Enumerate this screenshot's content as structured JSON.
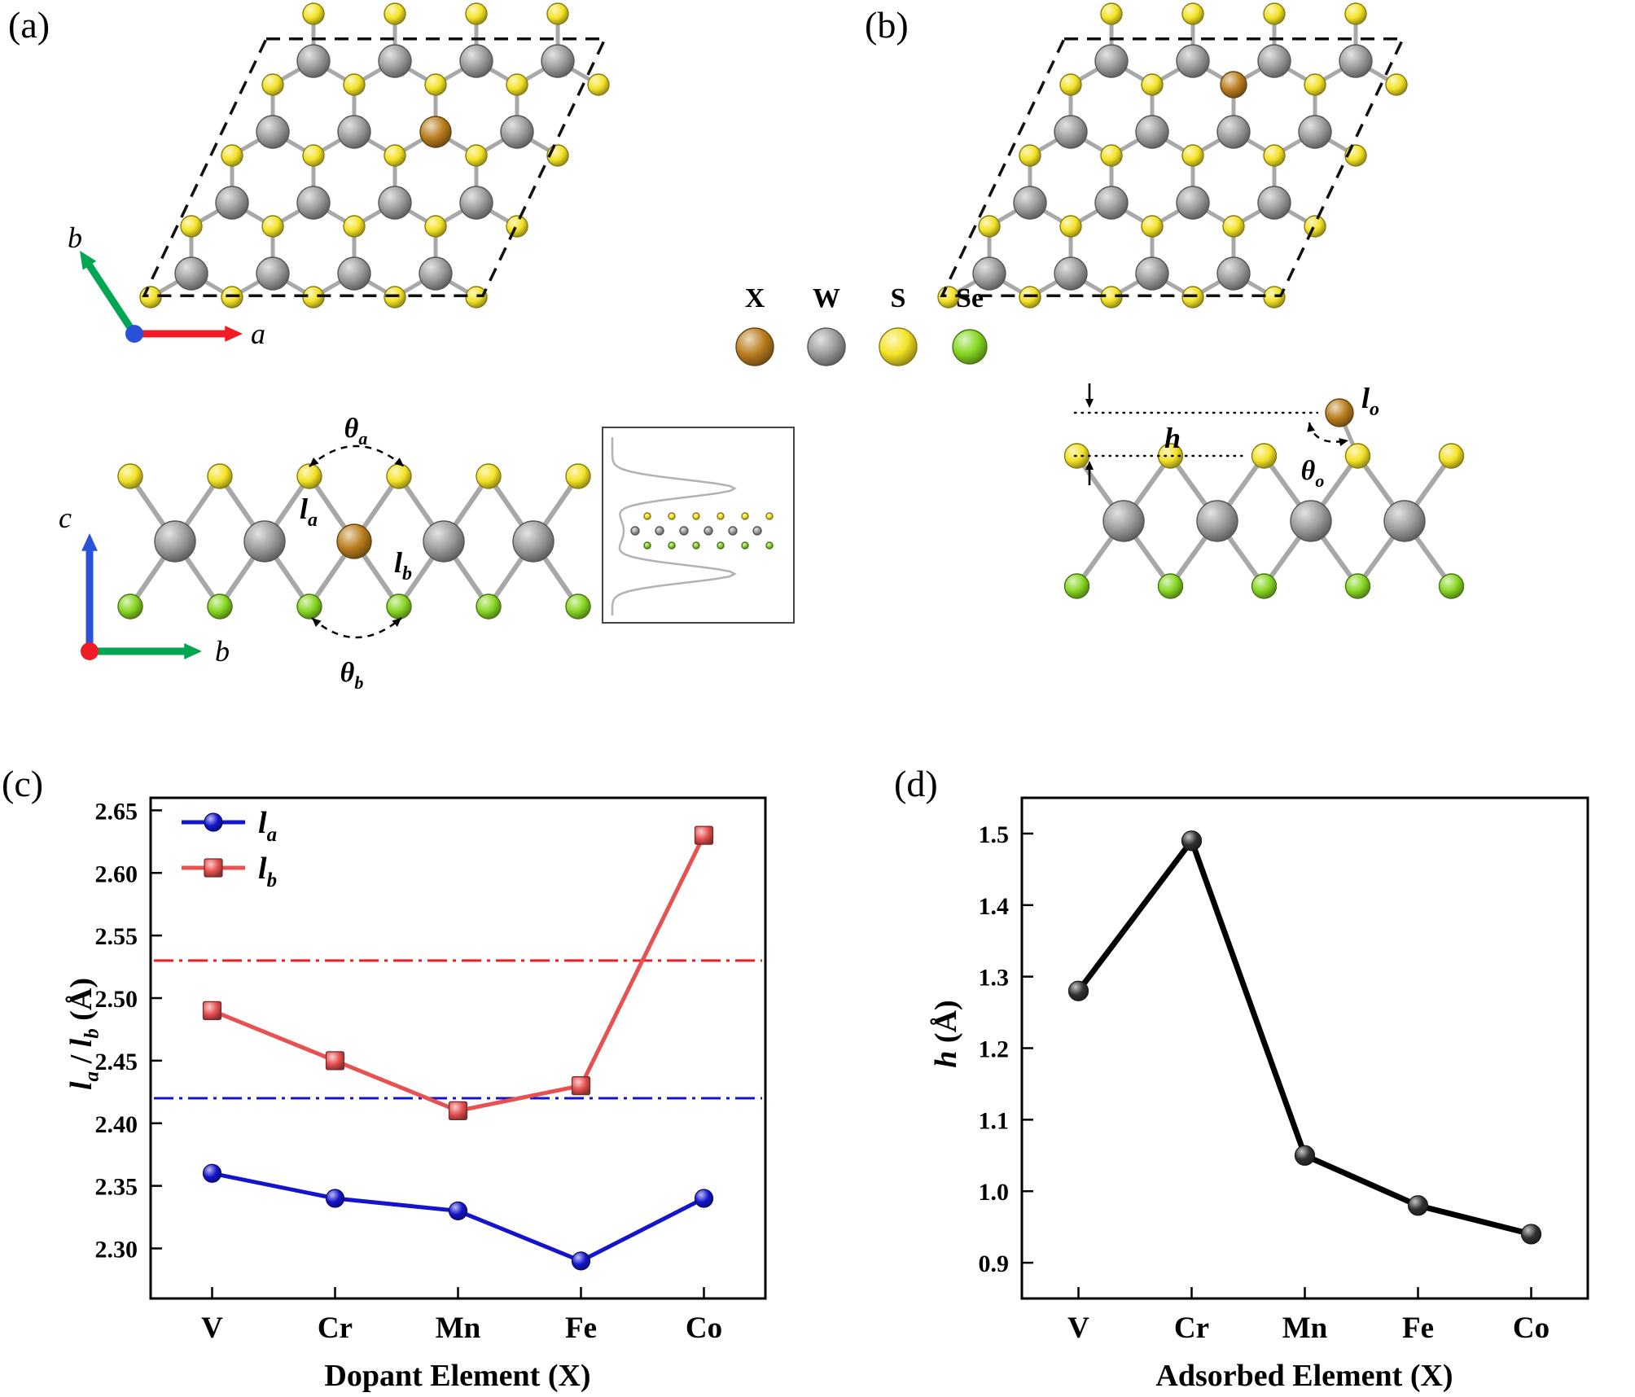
{
  "page": {
    "background": "#ffffff"
  },
  "panel_labels": {
    "a": "(a)",
    "b": "(b)",
    "c": "(c)",
    "d": "(d)"
  },
  "colors": {
    "X": "#b97d1e",
    "W": "#9c9c9c",
    "S": "#f3e224",
    "Se": "#86d622",
    "bond": "#a8a8a8",
    "unit_cell": "#111111",
    "axis_a_red": "#ee1c25",
    "axis_b_green": "#00a651",
    "axis_c_blue": "#2a52d8",
    "origin_top": "#2a52d8",
    "origin_side": "#ee1c25",
    "inset_curve": "#b2b2b2"
  },
  "legend": {
    "items": [
      {
        "label": "X",
        "color_key": "X"
      },
      {
        "label": "W",
        "color_key": "W"
      },
      {
        "label": "S",
        "color_key": "S"
      },
      {
        "label": "Se",
        "color_key": "Se"
      }
    ]
  },
  "axes": {
    "top_view": {
      "right_arrow": "a",
      "diag_arrow": "b"
    },
    "side_view": {
      "up_arrow": "c",
      "right_arrow": "b"
    }
  },
  "annotations": {
    "a": {
      "theta_a": [
        {
          "text": "θ",
          "style": "bolditalic"
        },
        {
          "text": "a",
          "style": "sub"
        }
      ],
      "l_a": [
        {
          "text": "l",
          "style": "bolditalic"
        },
        {
          "text": "a",
          "style": "sub"
        }
      ],
      "l_b": [
        {
          "text": "l",
          "style": "bolditalic"
        },
        {
          "text": "b",
          "style": "sub"
        }
      ],
      "theta_b": [
        {
          "text": "θ",
          "style": "bolditalic"
        },
        {
          "text": "b",
          "style": "sub"
        }
      ]
    },
    "b": {
      "h": [
        {
          "text": "h",
          "style": "bolditalic"
        }
      ],
      "l_o": [
        {
          "text": "l",
          "style": "bolditalic"
        },
        {
          "text": "o",
          "style": "sub"
        }
      ],
      "theta_o": [
        {
          "text": "θ",
          "style": "bolditalic"
        },
        {
          "text": "o",
          "style": "sub"
        }
      ]
    }
  },
  "chart_data": [
    {
      "id": "c",
      "type": "line",
      "categories": [
        "V",
        "Cr",
        "Mn",
        "Fe",
        "Co"
      ],
      "series": [
        {
          "name_parts": [
            {
              "text": "l",
              "style": "bolditalic"
            },
            {
              "text": "a",
              "style": "sub"
            }
          ],
          "marker": "circle",
          "color": "#1414cd",
          "values": [
            2.36,
            2.34,
            2.33,
            2.29,
            2.34
          ]
        },
        {
          "name_parts": [
            {
              "text": "l",
              "style": "bolditalic"
            },
            {
              "text": "b",
              "style": "sub"
            }
          ],
          "marker": "square",
          "color": "#e85151",
          "values": [
            2.49,
            2.45,
            2.41,
            2.43,
            2.63
          ]
        }
      ],
      "reference_lines": [
        {
          "value": 2.53,
          "color": "#ee1c25"
        },
        {
          "value": 2.42,
          "color": "#1414cd"
        }
      ],
      "ylabel_parts": [
        {
          "text": "l",
          "style": "bolditalic"
        },
        {
          "text": "a",
          "style": "sub"
        },
        {
          "text": " / ",
          "style": "bold"
        },
        {
          "text": "l",
          "style": "bolditalic"
        },
        {
          "text": "b",
          "style": "sub"
        },
        {
          "text": " (Å)",
          "style": "bold"
        }
      ],
      "xlabel": "Dopant Element (X)",
      "ylim": [
        2.26,
        2.66
      ],
      "yticks": [
        2.3,
        2.35,
        2.4,
        2.45,
        2.5,
        2.55,
        2.6,
        2.65
      ],
      "ytick_decimals": 2,
      "legend_position": "top-left",
      "grid": false
    },
    {
      "id": "d",
      "type": "line",
      "categories": [
        "V",
        "Cr",
        "Mn",
        "Fe",
        "Co"
      ],
      "series": [
        {
          "name_parts": [
            {
              "text": "h",
              "style": "bolditalic"
            }
          ],
          "marker": "circle",
          "color": "#000000",
          "values": [
            1.28,
            1.49,
            1.05,
            0.98,
            0.94
          ]
        }
      ],
      "reference_lines": [],
      "ylabel_parts": [
        {
          "text": "h",
          "style": "bolditalic"
        },
        {
          "text": " (Å)",
          "style": "bold"
        }
      ],
      "xlabel": "Adsorbed Element (X)",
      "ylim": [
        0.85,
        1.55
      ],
      "yticks": [
        0.9,
        1.0,
        1.1,
        1.2,
        1.3,
        1.4,
        1.5
      ],
      "ytick_decimals": 1,
      "legend_position": "none",
      "grid": false
    }
  ]
}
